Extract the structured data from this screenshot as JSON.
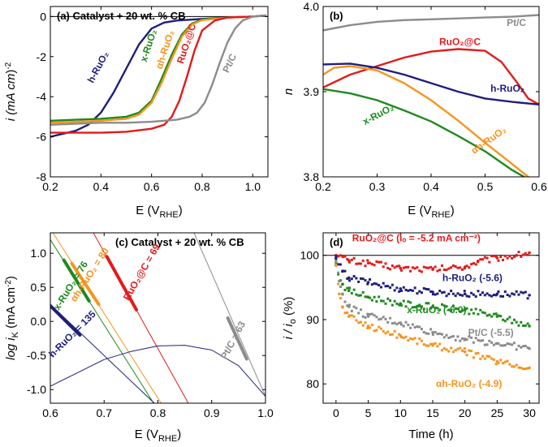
{
  "chart_data": [
    {
      "id": "a",
      "type": "line",
      "title": "(a) Catalyst + 20 wt. % CB",
      "xlabel": "E (V",
      "xlabel_sub": "RHE",
      "xlabel_tail": ")",
      "ylabel": "i (mA cm",
      "ylabel_sup": "-2",
      "ylabel_tail": ")",
      "xlim": [
        0.2,
        1.06
      ],
      "ylim": [
        -8,
        0.5
      ],
      "xticks": [
        0.2,
        0.4,
        0.6,
        0.8,
        1.0
      ],
      "xtick_labels": [
        "0.2",
        "0.4",
        "0.6",
        "0.8",
        "1.0"
      ],
      "yticks": [
        -8,
        -6,
        -4,
        -2,
        0
      ],
      "ytick_labels": [
        "-8",
        "-6",
        "-4",
        "-2",
        "0"
      ],
      "hline": 0,
      "series": [
        {
          "name": "h-RuO₂",
          "color": "#1f1f7a",
          "x": [
            0.2,
            0.3,
            0.35,
            0.4,
            0.45,
            0.5,
            0.55,
            0.6,
            0.65,
            0.7,
            0.8,
            0.9,
            1.0,
            1.05
          ],
          "y": [
            -6.0,
            -5.7,
            -5.4,
            -4.8,
            -3.8,
            -2.6,
            -1.4,
            -0.6,
            -0.3,
            -0.2,
            -0.12,
            -0.05,
            0.0,
            0.05
          ]
        },
        {
          "name": "x-RuO₂",
          "color": "#1e8a1e",
          "x": [
            0.2,
            0.3,
            0.4,
            0.5,
            0.55,
            0.6,
            0.64,
            0.68,
            0.72,
            0.76,
            0.8,
            0.9,
            1.0,
            1.05
          ],
          "y": [
            -5.2,
            -5.15,
            -5.1,
            -5.0,
            -4.8,
            -4.2,
            -3.1,
            -1.9,
            -0.9,
            -0.35,
            -0.15,
            -0.05,
            0.0,
            0.05
          ]
        },
        {
          "name": "αh-RuO₂",
          "color": "#f7941d",
          "x": [
            0.2,
            0.3,
            0.4,
            0.5,
            0.55,
            0.6,
            0.64,
            0.68,
            0.72,
            0.76,
            0.8,
            0.9,
            1.0,
            1.05
          ],
          "y": [
            -5.3,
            -5.25,
            -5.2,
            -5.1,
            -4.9,
            -4.3,
            -3.3,
            -2.1,
            -1.0,
            -0.4,
            -0.18,
            -0.06,
            0.0,
            0.05
          ]
        },
        {
          "name": "RuO₂@C",
          "color": "#e31a1c",
          "x": [
            0.2,
            0.3,
            0.4,
            0.5,
            0.6,
            0.65,
            0.68,
            0.71,
            0.74,
            0.77,
            0.8,
            0.85,
            0.9,
            1.0,
            1.05
          ],
          "y": [
            -5.8,
            -5.8,
            -5.8,
            -5.75,
            -5.6,
            -5.4,
            -5.0,
            -4.2,
            -3.0,
            -1.7,
            -0.7,
            -0.2,
            -0.05,
            0.0,
            0.05
          ]
        },
        {
          "name": "Pt/C",
          "color": "#8c8c8c",
          "x": [
            0.2,
            0.3,
            0.4,
            0.5,
            0.6,
            0.7,
            0.75,
            0.78,
            0.81,
            0.84,
            0.87,
            0.9,
            0.93,
            0.96,
            1.0,
            1.05
          ],
          "y": [
            -5.4,
            -5.35,
            -5.3,
            -5.3,
            -5.25,
            -5.15,
            -5.0,
            -4.8,
            -4.3,
            -3.4,
            -2.3,
            -1.3,
            -0.6,
            -0.2,
            0.0,
            0.05
          ]
        }
      ],
      "labels": [
        {
          "text": "h-RuO₂",
          "color": "#1f1f7a",
          "x": 0.4,
          "y": -2.6,
          "rot": -62
        },
        {
          "text": "x-RuO₂",
          "color": "#1e8a1e",
          "x": 0.6,
          "y": -1.5,
          "rot": -72
        },
        {
          "text": "αh-RuO₂",
          "color": "#f7941d",
          "x": 0.665,
          "y": -1.7,
          "rot": -72
        },
        {
          "text": "RuO₂@C",
          "color": "#e31a1c",
          "x": 0.75,
          "y": -1.4,
          "rot": -72
        },
        {
          "text": "Pt/C",
          "color": "#8c8c8c",
          "x": 0.92,
          "y": -2.4,
          "rot": -65
        }
      ]
    },
    {
      "id": "b",
      "type": "line",
      "title": "(b)",
      "xlabel": "E (V",
      "xlabel_sub": "RHE",
      "xlabel_tail": ")",
      "ylabel": "n",
      "xlim": [
        0.2,
        0.6
      ],
      "ylim": [
        3.8,
        4.0
      ],
      "xticks": [
        0.2,
        0.3,
        0.4,
        0.5,
        0.6
      ],
      "xtick_labels": [
        "0.2",
        "0.3",
        "0.4",
        "0.5",
        "0.6"
      ],
      "yticks": [
        3.8,
        3.9,
        4.0
      ],
      "ytick_labels": [
        "3.8",
        "3.9",
        "4.0"
      ],
      "series": [
        {
          "name": "Pt/C",
          "color": "#8c8c8c",
          "x": [
            0.2,
            0.25,
            0.3,
            0.35,
            0.4,
            0.45,
            0.5,
            0.55,
            0.6
          ],
          "y": [
            3.972,
            3.978,
            3.982,
            3.984,
            3.985,
            3.986,
            3.987,
            3.988,
            3.99
          ]
        },
        {
          "name": "RuO₂@C",
          "color": "#e31a1c",
          "x": [
            0.2,
            0.25,
            0.3,
            0.35,
            0.4,
            0.45,
            0.5,
            0.53,
            0.56,
            0.58,
            0.6
          ],
          "y": [
            3.905,
            3.92,
            3.93,
            3.94,
            3.947,
            3.95,
            3.948,
            3.935,
            3.91,
            3.892,
            3.885
          ]
        },
        {
          "name": "h-RuO₂",
          "color": "#1f1f7a",
          "x": [
            0.2,
            0.25,
            0.3,
            0.35,
            0.4,
            0.45,
            0.5,
            0.55,
            0.6
          ],
          "y": [
            3.932,
            3.933,
            3.928,
            3.92,
            3.91,
            3.9,
            3.892,
            3.888,
            3.885
          ]
        },
        {
          "name": "αh-RuO₂",
          "color": "#f7941d",
          "x": [
            0.2,
            0.22,
            0.25,
            0.3,
            0.35,
            0.4,
            0.45,
            0.5,
            0.55,
            0.6
          ],
          "y": [
            3.92,
            3.928,
            3.93,
            3.925,
            3.91,
            3.89,
            3.866,
            3.84,
            3.815,
            3.79
          ]
        },
        {
          "name": "x-RuO₂",
          "color": "#1e8a1e",
          "x": [
            0.2,
            0.25,
            0.3,
            0.35,
            0.4,
            0.45,
            0.5,
            0.55,
            0.6
          ],
          "y": [
            3.903,
            3.898,
            3.89,
            3.878,
            3.865,
            3.848,
            3.83,
            3.808,
            3.79
          ]
        }
      ],
      "labels": [
        {
          "text": "Pt/C",
          "color": "#8c8c8c",
          "x": 0.54,
          "y": 3.977,
          "rot": 0
        },
        {
          "text": "RuO₂@C",
          "color": "#e31a1c",
          "x": 0.415,
          "y": 3.955,
          "rot": 0
        },
        {
          "text": "h-RuO₂",
          "color": "#1f1f7a",
          "x": 0.51,
          "y": 3.9,
          "rot": 0
        },
        {
          "text": "x-RuO₂",
          "color": "#1e8a1e",
          "x": 0.305,
          "y": 3.87,
          "rot": -28
        },
        {
          "text": "αh-RuO₂",
          "color": "#f7941d",
          "x": 0.51,
          "y": 3.84,
          "rot": -35
        }
      ]
    },
    {
      "id": "c",
      "type": "line",
      "title": "(c) Catalyst + 20 wt. % CB",
      "xlabel": "E (V",
      "xlabel_sub": "RHE",
      "xlabel_tail": ")",
      "ylabel": "log i",
      "ylabel_sub": "K",
      "ylabel_tail": " (mA cm",
      "ylabel_sup": "-2",
      "ylabel_tail2": ")",
      "xlim": [
        0.6,
        1.0
      ],
      "ylim": [
        -1.2,
        1.3
      ],
      "xticks": [
        0.6,
        0.7,
        0.8,
        0.9,
        1.0
      ],
      "xtick_labels": [
        "0.6",
        "0.7",
        "0.8",
        "0.9",
        "1.0"
      ],
      "yticks": [
        -1.0,
        -0.5,
        0.0,
        0.5,
        1.0
      ],
      "ytick_labels": [
        "-1.0",
        "-0.5",
        "0.0",
        "0.5",
        "1.0"
      ],
      "series": [
        {
          "name": "Pt/C",
          "color": "#8c8c8c",
          "width": 1,
          "x": [
            0.867,
            1.0
          ],
          "y": [
            1.3,
            -1.1
          ]
        },
        {
          "name": "Pt/C Tafel",
          "color": "#8c8c8c",
          "width": 4,
          "x": [
            0.93,
            0.965
          ],
          "y": [
            0.05,
            -0.55
          ]
        },
        {
          "name": "RuO₂@C",
          "color": "#e31a1c",
          "width": 1,
          "x": [
            0.68,
            0.86
          ],
          "y": [
            1.3,
            -1.25
          ]
        },
        {
          "name": "RuO₂@C Tafel",
          "color": "#e31a1c",
          "width": 4,
          "x": [
            0.705,
            0.76
          ],
          "y": [
            0.95,
            0.17
          ]
        },
        {
          "name": "αh-RuO₂",
          "color": "#f7941d",
          "width": 1,
          "x": [
            0.605,
            0.81
          ],
          "y": [
            1.3,
            -1.25
          ]
        },
        {
          "name": "αh-RuO₂ Tafel",
          "color": "#f7941d",
          "width": 4,
          "x": [
            0.64,
            0.69
          ],
          "y": [
            0.85,
            0.25
          ]
        },
        {
          "name": "x-RuO₂",
          "color": "#1e8a1e",
          "width": 1,
          "x": [
            0.6,
            0.8
          ],
          "y": [
            1.2,
            -1.3
          ]
        },
        {
          "name": "x-RuO₂ Tafel",
          "color": "#1e8a1e",
          "width": 4,
          "x": [
            0.625,
            0.672
          ],
          "y": [
            0.9,
            0.3
          ]
        },
        {
          "name": "h-RuO₂",
          "color": "#1f1f7a",
          "width": 1,
          "x": [
            0.6,
            0.8
          ],
          "y": [
            0.25,
            -1.25
          ]
        },
        {
          "name": "h-RuO₂ Tafel",
          "color": "#1f1f7a",
          "width": 4,
          "x": [
            0.6,
            0.655
          ],
          "y": [
            0.23,
            -0.2
          ]
        },
        {
          "name": "h-RuO₂ curve",
          "color": "#1f1f7a",
          "width": 1,
          "x": [
            0.6,
            0.7,
            0.75,
            0.8,
            0.85,
            0.9,
            0.95,
            1.0
          ],
          "y": [
            -0.95,
            -0.56,
            -0.44,
            -0.36,
            -0.35,
            -0.42,
            -0.65,
            -1.1
          ]
        }
      ],
      "labels": [
        {
          "text": "αh-RuO₂ = 80",
          "color": "#f7941d",
          "x": 0.678,
          "y": 0.66,
          "rot": -57
        },
        {
          "text": "x-RuO₂ = 76",
          "color": "#1e8a1e",
          "x": 0.643,
          "y": 0.5,
          "rot": -58
        },
        {
          "text": "RuO₂@C = 69",
          "color": "#e31a1c",
          "x": 0.775,
          "y": 0.7,
          "rot": -60
        },
        {
          "text": "h-RuO₂ = 135",
          "color": "#1f1f7a",
          "x": 0.645,
          "y": -0.22,
          "rot": -45
        },
        {
          "text": "Pt/C = 63",
          "color": "#8c8c8c",
          "x": 0.945,
          "y": -0.3,
          "rot": -62
        }
      ]
    },
    {
      "id": "d",
      "type": "scatter",
      "title": "(d)",
      "xlabel": "Time (h)",
      "ylabel": "i / i",
      "ylabel_sub": "o",
      "ylabel_tail": " (%)",
      "xlim": [
        -2,
        31.5
      ],
      "ylim": [
        77,
        103.5
      ],
      "xticks": [
        0,
        5,
        10,
        15,
        20,
        25,
        30
      ],
      "xtick_labels": [
        "0",
        "5",
        "10",
        "15",
        "20",
        "25",
        "30"
      ],
      "yticks": [
        80,
        90,
        100
      ],
      "ytick_labels": [
        "80",
        "90",
        "100"
      ],
      "hline": 100,
      "series": [
        {
          "name": "RuO₂@C",
          "color": "#e31a1c",
          "x": [
            0,
            2,
            5,
            10,
            15,
            20,
            22,
            25,
            28,
            30
          ],
          "y": [
            100,
            99.2,
            98.8,
            98.0,
            97.8,
            98.2,
            99.0,
            99.6,
            100.0,
            100.4
          ]
        },
        {
          "name": "h-RuO₂",
          "color": "#1f1f7a",
          "x": [
            0,
            1,
            2,
            5,
            10,
            15,
            20,
            25,
            30
          ],
          "y": [
            99.5,
            97.5,
            96.5,
            95.8,
            94.8,
            94.3,
            94.0,
            94.0,
            93.8
          ]
        },
        {
          "name": "x-RuO₂",
          "color": "#1e8a1e",
          "x": [
            0,
            1,
            2,
            5,
            10,
            15,
            20,
            25,
            30
          ],
          "y": [
            98.5,
            95.5,
            94.5,
            93.5,
            92.5,
            92.0,
            91.5,
            90.5,
            89.0
          ]
        },
        {
          "name": "Pt/C",
          "color": "#8c8c8c",
          "x": [
            0,
            0.5,
            1,
            2,
            5,
            10,
            15,
            20,
            25,
            30
          ],
          "y": [
            99.0,
            96.0,
            94.0,
            92.0,
            90.5,
            89.5,
            88.0,
            87.0,
            86.3,
            85.5
          ]
        },
        {
          "name": "αh-RuO₂",
          "color": "#f7941d",
          "x": [
            0,
            0.5,
            1,
            2,
            5,
            10,
            15,
            20,
            25,
            30
          ],
          "y": [
            98.5,
            94.0,
            92.0,
            90.5,
            89.0,
            87.5,
            86.0,
            85.0,
            83.5,
            82.5
          ]
        }
      ],
      "labels": [
        {
          "text": "RuO₂@C (iₒ = -5.2 mA cm⁻²)",
          "color": "#e31a1c",
          "x": 2.5,
          "y": 102.2
        },
        {
          "text": "h-RuO₂ (-5.6)",
          "color": "#1f1f7a",
          "x": 16.5,
          "y": 96.0
        },
        {
          "text": "x-RuO₂ (-6.0)",
          "color": "#1e8a1e",
          "x": 11.0,
          "y": 91.0
        },
        {
          "text": "Pt/C (-5.5)",
          "color": "#8c8c8c",
          "x": 20.5,
          "y": 87.5
        },
        {
          "text": "αh-RuO₂ (-4.9)",
          "color": "#f7941d",
          "x": 15.5,
          "y": 79.5
        }
      ]
    }
  ]
}
